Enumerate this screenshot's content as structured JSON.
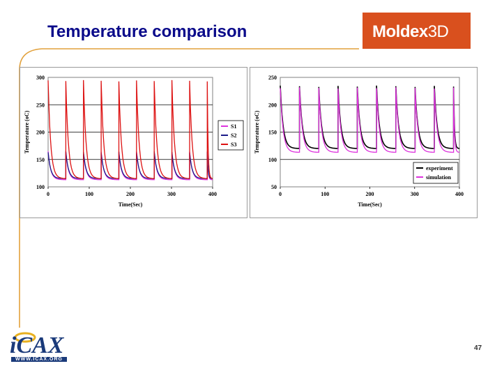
{
  "slide": {
    "title": "Temperature comparison",
    "brand": "Moldex3D",
    "brand_main": "Moldex",
    "brand_suffix": "3D",
    "page_number": "47",
    "footer_logo": "iCAX",
    "footer_url": "WWW.ICAX.ORG"
  },
  "colors": {
    "title": "#0a0a8a",
    "brand_box": "#d9501e",
    "accent_line": "#e2a13c"
  },
  "chart_data": [
    {
      "type": "line",
      "title": "",
      "xlabel": "Time(Sec)",
      "ylabel": "Temperature (oC)",
      "xlim": [
        0,
        400
      ],
      "ylim": [
        100,
        300
      ],
      "xticks": [
        0,
        100,
        200,
        300,
        400
      ],
      "yticks": [
        100,
        150,
        200,
        250,
        300
      ],
      "grid": "horizontal",
      "legend": "right",
      "cycle_starts": [
        0,
        43,
        86,
        129,
        172,
        215,
        258,
        301,
        344,
        387
      ],
      "series": [
        {
          "name": "S1",
          "color": "#dd33dd",
          "peak": 165,
          "base": 113
        },
        {
          "name": "S2",
          "color": "#1a1a88",
          "peak": 165,
          "base": 115
        },
        {
          "name": "S3",
          "color": "#dd1111",
          "peak": 295,
          "base": 115
        }
      ]
    },
    {
      "type": "line",
      "title": "",
      "xlabel": "Time(Sec)",
      "ylabel": "Temperature (oC)",
      "xlim": [
        0,
        400
      ],
      "ylim": [
        50,
        250
      ],
      "xticks": [
        0,
        100,
        200,
        300,
        400
      ],
      "yticks": [
        50,
        100,
        150,
        200,
        250
      ],
      "grid": "horizontal",
      "legend": "bottom-right",
      "cycle_starts": [
        0,
        43,
        86,
        129,
        172,
        215,
        258,
        301,
        344,
        387
      ],
      "series": [
        {
          "name": "experiment",
          "color": "#000000",
          "peak": 235,
          "base": 120
        },
        {
          "name": "simulation",
          "color": "#dd33dd",
          "peak": 232,
          "base": 113
        }
      ]
    }
  ]
}
